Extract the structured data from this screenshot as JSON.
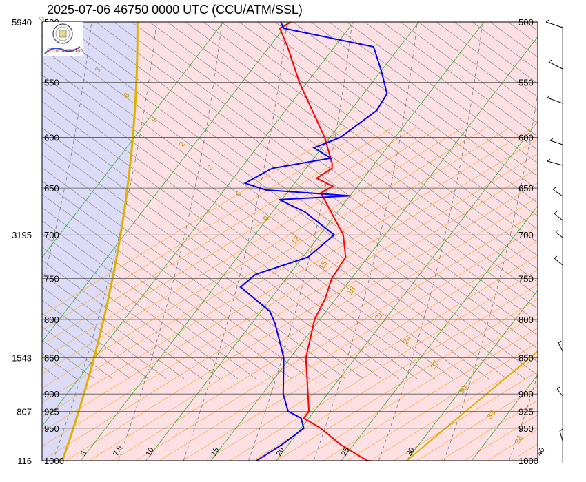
{
  "title": "2025-07-06 46750 0000 UTC (CCU/ATM/SSL)",
  "colors": {
    "temperature": "#ff0000",
    "dewpoint": "#0000ff",
    "stable_fill": "#fde0e4",
    "unstable_fill": "#dcdcf8",
    "isotherm": "#33aa33",
    "dry_adiabat": "#ffaa33",
    "parcel": "#e0b000",
    "moist_adiabat": "#555555",
    "isobar": "#555555"
  },
  "logo": {
    "icon": "university-seal-icon",
    "text": "Severe Storms Lab."
  },
  "chart_data": {
    "type": "line",
    "subtype": "skew-T log-P diagram",
    "pressure_range": [
      1000,
      500
    ],
    "temperature_range_at_base": [
      5,
      40
    ],
    "pressure_labels": [
      "500",
      "550",
      "600",
      "650",
      "700",
      "750",
      "800",
      "850",
      "900",
      "925",
      "950",
      "1000"
    ],
    "height_labels": [
      {
        "pressure": 500,
        "height": "5940"
      },
      {
        "pressure": 700,
        "height": "3195"
      },
      {
        "pressure": 850,
        "height": "1543"
      },
      {
        "pressure": 925,
        "height": "807"
      },
      {
        "pressure": 1000,
        "height": "116"
      }
    ],
    "isotherm_labels": [
      {
        "t": 5,
        "text": "5"
      },
      {
        "t": 7.5,
        "text": "7.5"
      },
      {
        "t": 10,
        "text": "10"
      },
      {
        "t": 15,
        "text": "15"
      },
      {
        "t": 20,
        "text": "20"
      },
      {
        "t": 25,
        "text": "25"
      },
      {
        "t": 30,
        "text": "30"
      },
      {
        "t": 40,
        "text": "40"
      }
    ],
    "mixing_ratio_labels": [
      "0",
      "3",
      "6",
      "9",
      "2",
      "3",
      "6",
      "9",
      "12",
      "15",
      "18",
      "21",
      "24",
      "27",
      "30",
      "33",
      "36"
    ],
    "series": [
      {
        "name": "Temperature",
        "points": [
          [
            1002,
            28.5
          ],
          [
            1000,
            27.0
          ],
          [
            975,
            24.0
          ],
          [
            950,
            21.5
          ],
          [
            935,
            19.6
          ],
          [
            925,
            19.6
          ],
          [
            900,
            18.5
          ],
          [
            850,
            16.2
          ],
          [
            800,
            14.6
          ],
          [
            775,
            14.2
          ],
          [
            750,
            13.5
          ],
          [
            725,
            13.3
          ],
          [
            700,
            11.8
          ],
          [
            675,
            9.5
          ],
          [
            655,
            7.6
          ],
          [
            648,
            8.1
          ],
          [
            640,
            6.4
          ],
          [
            630,
            7.0
          ],
          [
            625,
            6.7
          ],
          [
            600,
            4.6
          ],
          [
            550,
            -0.6
          ],
          [
            520,
            -3.6
          ],
          [
            505,
            -5.3
          ],
          [
            500,
            -4.8
          ]
        ]
      },
      {
        "name": "Dewpoint",
        "points": [
          [
            1000,
            18.5
          ],
          [
            975,
            19.5
          ],
          [
            950,
            20.2
          ],
          [
            935,
            19.4
          ],
          [
            925,
            18.0
          ],
          [
            900,
            16.6
          ],
          [
            850,
            14.5
          ],
          [
            805,
            11.8
          ],
          [
            790,
            10.7
          ],
          [
            760,
            7.0
          ],
          [
            745,
            7.4
          ],
          [
            725,
            10.4
          ],
          [
            700,
            11.1
          ],
          [
            675,
            7.5
          ],
          [
            662,
            4.8
          ],
          [
            658,
            10.0
          ],
          [
            652,
            3.2
          ],
          [
            645,
            1.2
          ],
          [
            630,
            2.4
          ],
          [
            620,
            6.3
          ],
          [
            610,
            4.4
          ],
          [
            600,
            5.8
          ],
          [
            575,
            7.0
          ],
          [
            560,
            6.8
          ],
          [
            540,
            5.0
          ],
          [
            520,
            3.0
          ],
          [
            505,
            -5.0
          ],
          [
            500,
            -5.6
          ]
        ]
      }
    ]
  }
}
